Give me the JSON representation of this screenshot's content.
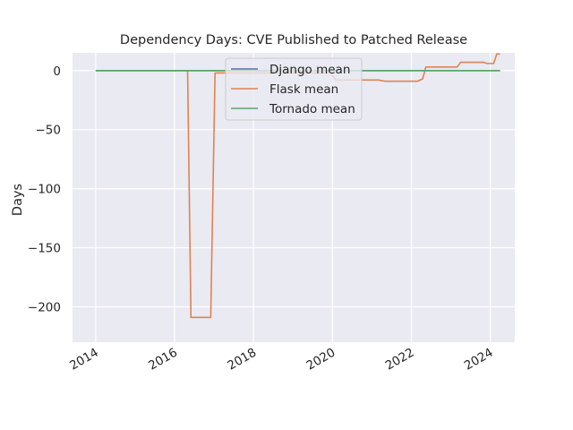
{
  "chart_data": {
    "type": "line",
    "title": "Dependency Days: CVE Published to Patched Release",
    "xlabel": "",
    "ylabel": "Days",
    "xlim": [
      "2013-06-01",
      "2024-08-15"
    ],
    "ylim": [
      -230,
      15
    ],
    "x_ticks": [
      "2014",
      "2016",
      "2018",
      "2020",
      "2022",
      "2024"
    ],
    "y_ticks": [
      0,
      -50,
      -100,
      -150,
      -200
    ],
    "y_tick_labels": [
      "0",
      "−50",
      "−100",
      "−150",
      "−200"
    ],
    "grid": true,
    "legend_position": "top-center",
    "background": "#eaeaf2",
    "series": [
      {
        "name": "Django mean",
        "color": "#4c72b0",
        "points": [
          [
            "2014-01-01",
            0
          ],
          [
            "2024-04-01",
            0
          ]
        ]
      },
      {
        "name": "Flask mean",
        "color": "#dd8452",
        "points": [
          [
            "2014-01-01",
            0
          ],
          [
            "2016-05-01",
            0
          ],
          [
            "2016-06-01",
            -209
          ],
          [
            "2016-12-01",
            -209
          ],
          [
            "2017-01-10",
            -2
          ],
          [
            "2019-12-15",
            -2
          ],
          [
            "2020-02-01",
            -8
          ],
          [
            "2021-03-01",
            -8
          ],
          [
            "2021-05-01",
            -9
          ],
          [
            "2022-03-01",
            -9
          ],
          [
            "2022-04-15",
            -7
          ],
          [
            "2022-05-15",
            3
          ],
          [
            "2023-03-01",
            3
          ],
          [
            "2023-04-01",
            7
          ],
          [
            "2023-11-01",
            7
          ],
          [
            "2023-12-01",
            6
          ],
          [
            "2024-02-01",
            6
          ],
          [
            "2024-03-01",
            14
          ],
          [
            "2024-04-01",
            14
          ]
        ]
      },
      {
        "name": "Tornado mean",
        "color": "#55a868",
        "points": [
          [
            "2014-01-01",
            0
          ],
          [
            "2024-04-01",
            0
          ]
        ]
      }
    ]
  }
}
